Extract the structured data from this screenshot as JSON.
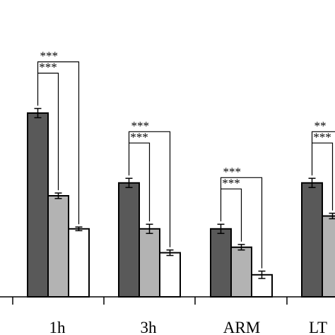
{
  "chart_data": {
    "type": "bar",
    "categories": [
      "1h",
      "3h",
      "ARM",
      "LTM"
    ],
    "category_labels_visible": [
      "1h",
      "3h",
      "ARM",
      "LT"
    ],
    "series": [
      {
        "values": [
          1.0,
          0.62,
          0.37,
          0.62
        ],
        "errors": [
          0.025,
          0.025,
          0.025,
          0.025
        ]
      },
      {
        "values": [
          0.55,
          0.37,
          0.27,
          0.44
        ],
        "errors": [
          0.015,
          0.025,
          0.015,
          0.015
        ]
      },
      {
        "values": [
          0.37,
          0.24,
          0.12,
          null
        ],
        "errors": [
          0.01,
          0.015,
          0.02,
          null
        ]
      }
    ],
    "ylim": [
      0,
      1.12
    ],
    "grid": false,
    "significance": [
      {
        "category": "1h",
        "first": "***",
        "second": "***"
      },
      {
        "category": "3h",
        "first": "***",
        "second": "***"
      },
      {
        "category": "ARM",
        "first": "***",
        "second": "***"
      },
      {
        "category": "LTM",
        "first": "**",
        "second": "***"
      }
    ]
  },
  "colors": {
    "series": [
      "#595959",
      "#b3b3b3",
      "#ffffff"
    ],
    "stroke": "#000000"
  }
}
